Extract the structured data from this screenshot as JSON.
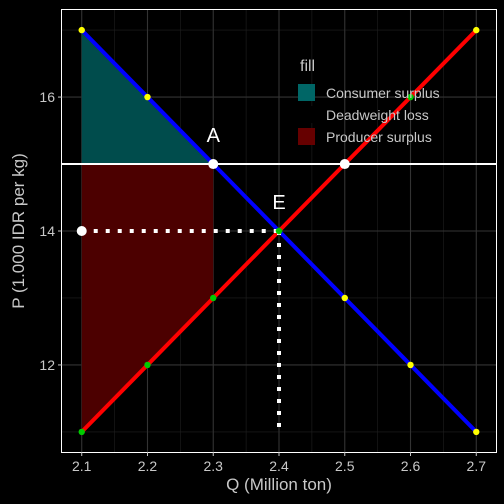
{
  "chart_data": {
    "type": "line",
    "title": "",
    "xlabel": "Q (Million ton)",
    "ylabel": "P (1.000 IDR per kg)",
    "xlim": [
      2.1,
      2.7
    ],
    "ylim": [
      11,
      17
    ],
    "x_ticks": [
      "2.1",
      "2.2",
      "2.3",
      "2.4",
      "2.5",
      "2.6",
      "2.7"
    ],
    "y_ticks": [
      "12",
      "14",
      "16"
    ],
    "grid": true,
    "colors": {
      "background": "#000000",
      "grid": "#333333",
      "demand": "#0000ff",
      "supply": "#ff0000",
      "consumer_surplus": "#004c4c",
      "producer_surplus": "#4c0000",
      "price_line": "#ffffff",
      "marker_demand": "#ffff00",
      "marker_supply": "#00cc00"
    },
    "series": [
      {
        "line": "demand",
        "x": [
          2.1,
          2.2,
          2.3,
          2.4,
          2.5,
          2.6,
          2.7
        ],
        "y": [
          17,
          16,
          15,
          14,
          13,
          12,
          11
        ]
      },
      {
        "line": "supply",
        "x": [
          2.1,
          2.2,
          2.3,
          2.4,
          2.5,
          2.6,
          2.7
        ],
        "y": [
          11,
          12,
          13,
          14,
          15,
          16,
          17
        ]
      }
    ],
    "areas": [
      {
        "fill": "consumer_surplus",
        "polygon": [
          [
            2.1,
            17
          ],
          [
            2.3,
            15
          ],
          [
            2.1,
            15
          ]
        ]
      },
      {
        "fill": "producer_surplus",
        "polygon": [
          [
            2.1,
            15
          ],
          [
            2.3,
            15
          ],
          [
            2.3,
            13
          ],
          [
            2.1,
            11
          ]
        ]
      }
    ],
    "price_line_y": 15,
    "equilibrium": {
      "x": 2.4,
      "y": 14
    },
    "annotations": [
      {
        "text": "A",
        "x": 2.3,
        "y": 15
      },
      {
        "text": "E",
        "x": 2.4,
        "y": 14
      }
    ],
    "legend": {
      "title": "fill",
      "position": "top-right",
      "entries": [
        {
          "label": "Consumer surplus",
          "color": "#006666"
        },
        {
          "label": "Deadweight loss",
          "color": "#000000"
        },
        {
          "label": "Producer surplus",
          "color": "#660000"
        }
      ]
    }
  }
}
